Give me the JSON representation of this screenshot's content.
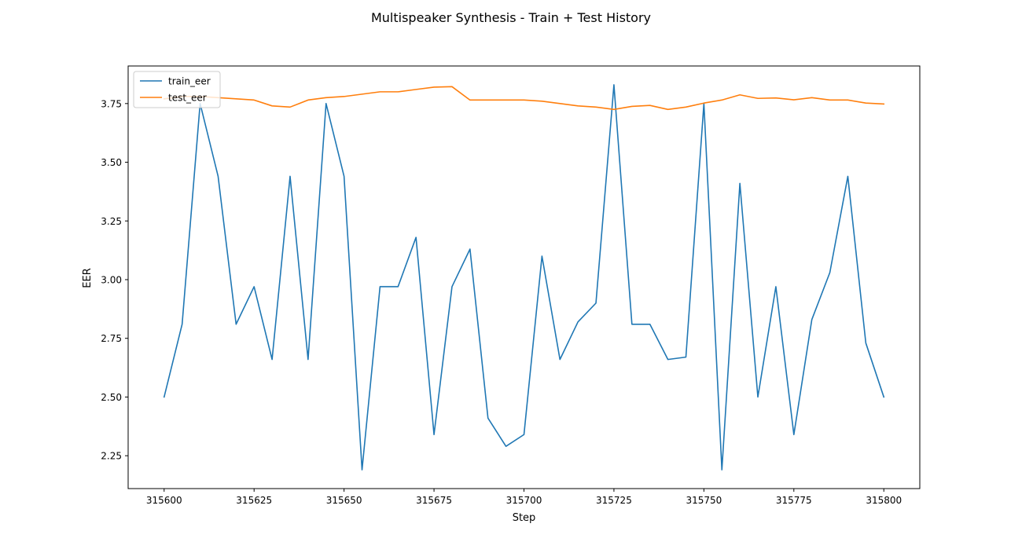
{
  "chart_data": {
    "type": "line",
    "title": "Multispeaker Synthesis - Train + Test History",
    "xlabel": "Step",
    "ylabel": "EER",
    "xlim": [
      315590,
      315810
    ],
    "ylim": [
      2.11,
      3.91
    ],
    "x_ticks": [
      315600,
      315625,
      315650,
      315675,
      315700,
      315725,
      315750,
      315775,
      315800
    ],
    "x_tick_labels": [
      "315600",
      "315625",
      "315650",
      "315675",
      "315700",
      "315725",
      "315750",
      "315775",
      "315800"
    ],
    "y_ticks": [
      2.25,
      2.5,
      2.75,
      3.0,
      3.25,
      3.5,
      3.75
    ],
    "y_tick_labels": [
      "2.25",
      "2.50",
      "2.75",
      "3.00",
      "3.25",
      "3.50",
      "3.75"
    ],
    "grid": false,
    "legend_position": "upper left",
    "x": [
      315600,
      315605,
      315610,
      315615,
      315620,
      315625,
      315630,
      315635,
      315640,
      315645,
      315650,
      315655,
      315660,
      315665,
      315670,
      315675,
      315680,
      315685,
      315690,
      315695,
      315700,
      315705,
      315710,
      315715,
      315720,
      315725,
      315730,
      315735,
      315740,
      315745,
      315750,
      315755,
      315760,
      315765,
      315770,
      315775,
      315780,
      315785,
      315790,
      315795,
      315800
    ],
    "series": [
      {
        "name": "train_eer",
        "color": "#1f77b4",
        "values": [
          2.5,
          2.81,
          3.75,
          3.44,
          2.81,
          2.97,
          2.66,
          3.44,
          2.66,
          3.75,
          3.44,
          2.19,
          2.97,
          2.97,
          3.18,
          2.34,
          2.97,
          3.13,
          2.41,
          2.29,
          2.34,
          3.1,
          2.66,
          2.82,
          2.9,
          3.83,
          2.81,
          2.81,
          2.66,
          2.67,
          3.75,
          2.19,
          3.41,
          2.5,
          2.97,
          2.34,
          2.83,
          3.03,
          3.44,
          2.73,
          2.5
        ]
      },
      {
        "name": "test_eer",
        "color": "#ff7f0e",
        "values": [
          3.77,
          3.78,
          3.78,
          3.775,
          3.77,
          3.765,
          3.74,
          3.735,
          3.765,
          3.775,
          3.78,
          3.79,
          3.8,
          3.8,
          3.81,
          3.82,
          3.822,
          3.765,
          3.765,
          3.765,
          3.765,
          3.76,
          3.75,
          3.74,
          3.735,
          3.725,
          3.738,
          3.742,
          3.725,
          3.735,
          3.752,
          3.765,
          3.787,
          3.772,
          3.774,
          3.766,
          3.775,
          3.765,
          3.765,
          3.752,
          3.748
        ]
      }
    ]
  }
}
